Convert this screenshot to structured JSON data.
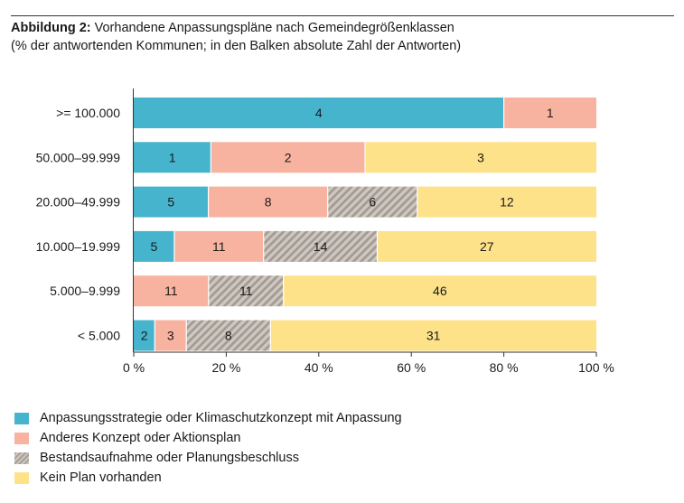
{
  "header": {
    "title_bold": "Abbildung 2:",
    "title_rest": " Vorhandene Anpassungspläne nach Gemeindegrößenklassen",
    "subtitle": "(% der antwortenden Kommunen; in den Balken absolute Zahl der Antworten)"
  },
  "colors": {
    "strategy": "#46b4cd",
    "other_concept": "#f8b3a0",
    "inventory": "#bcb5ae",
    "no_plan": "#fde28a"
  },
  "chart_data": {
    "type": "bar",
    "orientation": "horizontal",
    "stacked": "percent",
    "categories": [
      ">= 100.000",
      "50.000–99.999",
      "20.000–49.999",
      "10.000–19.999",
      "5.000–9.999",
      "< 5.000"
    ],
    "series": [
      {
        "name": "Anpassungsstrategie oder Klimaschutzkonzept mit Anpassung",
        "values": [
          4,
          1,
          5,
          5,
          0,
          2
        ]
      },
      {
        "name": "Anderes Konzept oder Aktionsplan",
        "values": [
          1,
          2,
          8,
          11,
          11,
          3
        ]
      },
      {
        "name": "Bestandsaufnahme oder Planungsbeschluss",
        "values": [
          0,
          0,
          6,
          14,
          11,
          8
        ]
      },
      {
        "name": "Kein Plan vorhanden",
        "values": [
          0,
          3,
          12,
          27,
          46,
          31
        ]
      }
    ],
    "xticks": [
      "0 %",
      "20 %",
      "40 %",
      "60 %",
      "80 %",
      "100 %"
    ],
    "xlim": [
      0,
      100
    ],
    "legend_position": "bottom-left"
  }
}
